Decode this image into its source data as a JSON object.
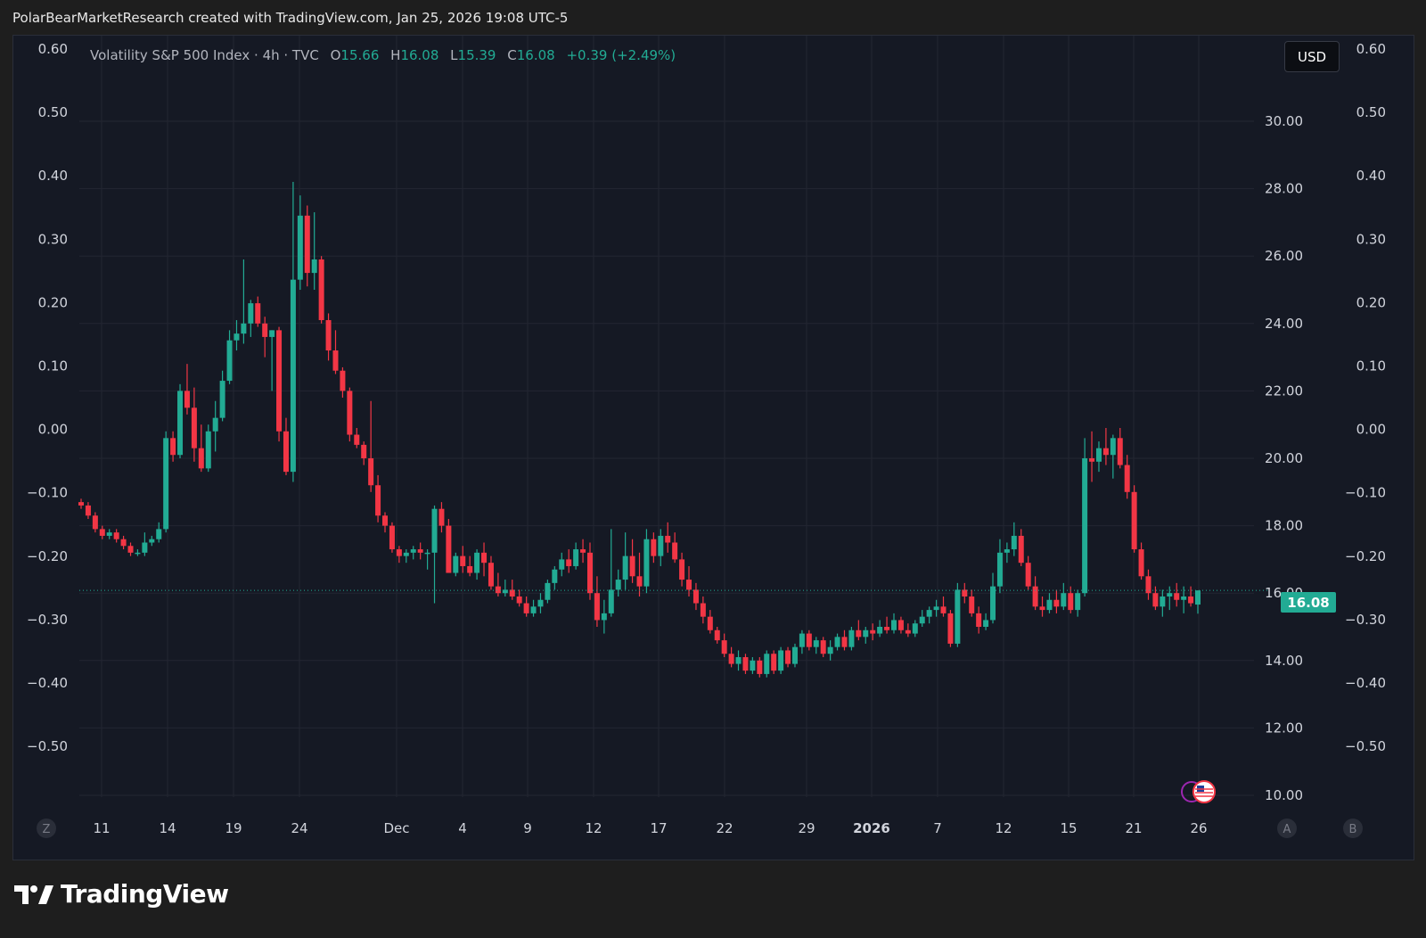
{
  "attribution": "PolarBearMarketResearch created with TradingView.com, Jan 25, 2026 19:08 UTC-5",
  "legend": {
    "symbol": "Volatility S&P 500 Index · 4h · TVC",
    "open_label": "O",
    "open": "15.66",
    "high_label": "H",
    "high": "16.08",
    "low_label": "L",
    "low": "15.39",
    "close_label": "C",
    "close": "16.08",
    "change": "+0.39 (+2.49%)"
  },
  "toolbar": {
    "currency": "USD",
    "scale_left_btn": "Z",
    "auto_btn": "A",
    "log_btn": "B"
  },
  "last_price": "16.08",
  "brand": {
    "name": "TradingView"
  },
  "colors": {
    "up": "#22ab94",
    "down": "#f23645",
    "background": "#151924",
    "grid": "#232632",
    "text": "#d1d4dc"
  },
  "icons": [
    "tradingview-logo-icon",
    "us-flag-icon",
    "event-marker-icon"
  ],
  "chart_data": {
    "type": "candlestick",
    "title": "Volatility S&P 500 Index · 4h · TVC",
    "interval": "4h",
    "x_ticks": [
      "11",
      "14",
      "19",
      "24",
      "Dec",
      "4",
      "9",
      "12",
      "17",
      "22",
      "29",
      "2026",
      "7",
      "12",
      "15",
      "21",
      "26"
    ],
    "y_right_ticks": [
      "30.00",
      "28.00",
      "26.00",
      "24.00",
      "22.00",
      "20.00",
      "18.00",
      "16.00",
      "14.00",
      "12.00",
      "10.00"
    ],
    "y_left_ticks": [
      "0.60",
      "0.50",
      "0.40",
      "0.30",
      "0.20",
      "0.10",
      "0.00",
      "−0.10",
      "−0.20",
      "−0.30",
      "−0.40",
      "−0.50"
    ],
    "y_far_right_ticks": [
      "0.60",
      "0.50",
      "0.40",
      "0.30",
      "0.20",
      "0.10",
      "0.00",
      "−0.10",
      "−0.20",
      "−0.30",
      "−0.40",
      "−0.50"
    ],
    "ylim": [
      10.0,
      31.0
    ],
    "last_value": 16.08,
    "grid": true,
    "candles_ohlc": [
      [
        18.7,
        18.8,
        18.5,
        18.6
      ],
      [
        18.6,
        18.7,
        18.2,
        18.3
      ],
      [
        18.3,
        18.4,
        17.8,
        17.9
      ],
      [
        17.9,
        18.0,
        17.6,
        17.7
      ],
      [
        17.7,
        17.9,
        17.6,
        17.8
      ],
      [
        17.8,
        17.9,
        17.5,
        17.6
      ],
      [
        17.6,
        17.7,
        17.3,
        17.4
      ],
      [
        17.4,
        17.5,
        17.1,
        17.2
      ],
      [
        17.2,
        17.3,
        17.1,
        17.2
      ],
      [
        17.2,
        17.8,
        17.1,
        17.5
      ],
      [
        17.5,
        17.7,
        17.4,
        17.6
      ],
      [
        17.6,
        18.1,
        17.5,
        17.9
      ],
      [
        17.9,
        20.8,
        17.8,
        20.6
      ],
      [
        20.6,
        20.8,
        19.9,
        20.1
      ],
      [
        20.1,
        22.2,
        20.0,
        22.0
      ],
      [
        22.0,
        22.8,
        21.3,
        21.5
      ],
      [
        21.5,
        22.1,
        19.9,
        20.3
      ],
      [
        20.3,
        21.0,
        19.6,
        19.7
      ],
      [
        19.7,
        21.0,
        19.6,
        20.8
      ],
      [
        20.8,
        21.7,
        20.2,
        21.2
      ],
      [
        21.2,
        22.6,
        21.1,
        22.3
      ],
      [
        22.3,
        23.8,
        22.2,
        23.5
      ],
      [
        23.5,
        24.1,
        23.2,
        23.7
      ],
      [
        23.7,
        25.9,
        23.4,
        24.0
      ],
      [
        24.0,
        24.7,
        23.6,
        24.6
      ],
      [
        24.6,
        24.8,
        23.9,
        24.0
      ],
      [
        24.0,
        24.2,
        23.0,
        23.6
      ],
      [
        23.6,
        23.8,
        22.0,
        23.8
      ],
      [
        23.8,
        23.9,
        20.5,
        20.8
      ],
      [
        20.8,
        21.2,
        19.5,
        19.6
      ],
      [
        19.6,
        28.2,
        19.3,
        25.3
      ],
      [
        25.3,
        27.8,
        25.0,
        27.2
      ],
      [
        27.2,
        27.5,
        25.1,
        25.5
      ],
      [
        25.5,
        27.3,
        25.0,
        25.9
      ],
      [
        25.9,
        26.0,
        24.0,
        24.1
      ],
      [
        24.1,
        24.3,
        22.9,
        23.2
      ],
      [
        23.2,
        23.8,
        22.5,
        22.6
      ],
      [
        22.6,
        22.7,
        21.8,
        22.0
      ],
      [
        22.0,
        22.1,
        20.5,
        20.7
      ],
      [
        20.7,
        20.9,
        20.3,
        20.4
      ],
      [
        20.4,
        20.5,
        19.8,
        20.0
      ],
      [
        20.0,
        21.7,
        19.0,
        19.2
      ],
      [
        19.2,
        19.5,
        18.1,
        18.3
      ],
      [
        18.3,
        18.4,
        17.8,
        18.0
      ],
      [
        18.0,
        18.1,
        17.2,
        17.3
      ],
      [
        17.3,
        17.4,
        16.9,
        17.1
      ],
      [
        17.1,
        17.3,
        16.9,
        17.2
      ],
      [
        17.2,
        17.4,
        17.0,
        17.3
      ],
      [
        17.3,
        17.5,
        17.0,
        17.2
      ],
      [
        17.2,
        17.3,
        16.7,
        17.2
      ],
      [
        17.2,
        18.6,
        15.7,
        18.5
      ],
      [
        18.5,
        18.7,
        17.8,
        18.0
      ],
      [
        18.0,
        18.2,
        16.6,
        16.6
      ],
      [
        16.6,
        17.2,
        16.5,
        17.1
      ],
      [
        17.1,
        17.4,
        16.6,
        16.8
      ],
      [
        16.8,
        17.1,
        16.5,
        16.6
      ],
      [
        16.6,
        17.3,
        16.4,
        17.2
      ],
      [
        17.2,
        17.5,
        16.5,
        16.9
      ],
      [
        16.9,
        17.1,
        16.1,
        16.2
      ],
      [
        16.2,
        16.6,
        15.9,
        16.0
      ],
      [
        16.0,
        16.4,
        15.9,
        16.1
      ],
      [
        16.1,
        16.4,
        15.8,
        15.9
      ],
      [
        15.9,
        16.1,
        15.6,
        15.7
      ],
      [
        15.7,
        15.9,
        15.3,
        15.4
      ],
      [
        15.4,
        15.8,
        15.3,
        15.6
      ],
      [
        15.6,
        16.0,
        15.4,
        15.8
      ],
      [
        15.8,
        16.4,
        15.7,
        16.3
      ],
      [
        16.3,
        16.8,
        16.1,
        16.7
      ],
      [
        16.7,
        17.2,
        16.5,
        17.0
      ],
      [
        17.0,
        17.3,
        16.6,
        16.8
      ],
      [
        16.8,
        17.5,
        16.7,
        17.3
      ],
      [
        17.3,
        17.6,
        16.9,
        17.2
      ],
      [
        17.2,
        17.5,
        15.8,
        16.0
      ],
      [
        16.0,
        16.5,
        15.0,
        15.2
      ],
      [
        15.2,
        15.8,
        14.8,
        15.4
      ],
      [
        15.4,
        17.9,
        15.3,
        16.1
      ],
      [
        16.1,
        16.7,
        15.9,
        16.4
      ],
      [
        16.4,
        17.8,
        16.1,
        17.1
      ],
      [
        17.1,
        17.6,
        16.3,
        16.5
      ],
      [
        16.5,
        17.2,
        15.9,
        16.2
      ],
      [
        16.2,
        17.9,
        16.0,
        17.6
      ],
      [
        17.6,
        17.8,
        16.9,
        17.1
      ],
      [
        17.1,
        17.9,
        16.8,
        17.7
      ],
      [
        17.7,
        18.1,
        17.2,
        17.5
      ],
      [
        17.5,
        17.8,
        16.9,
        17.0
      ],
      [
        17.0,
        17.2,
        16.2,
        16.4
      ],
      [
        16.4,
        16.8,
        15.9,
        16.1
      ],
      [
        16.1,
        16.3,
        15.5,
        15.7
      ],
      [
        15.7,
        15.9,
        15.1,
        15.3
      ],
      [
        15.3,
        15.5,
        14.8,
        14.9
      ],
      [
        14.9,
        15.0,
        14.5,
        14.6
      ],
      [
        14.6,
        14.8,
        14.1,
        14.2
      ],
      [
        14.2,
        14.4,
        13.8,
        13.9
      ],
      [
        13.9,
        14.3,
        13.7,
        14.1
      ],
      [
        14.1,
        14.2,
        13.6,
        13.7
      ],
      [
        13.7,
        14.1,
        13.6,
        14.0
      ],
      [
        14.0,
        14.1,
        13.5,
        13.6
      ],
      [
        13.6,
        14.3,
        13.5,
        14.2
      ],
      [
        14.2,
        14.3,
        13.6,
        13.7
      ],
      [
        13.7,
        14.4,
        13.6,
        14.3
      ],
      [
        14.3,
        14.4,
        13.8,
        13.9
      ],
      [
        13.9,
        14.5,
        13.8,
        14.4
      ],
      [
        14.4,
        14.9,
        14.2,
        14.8
      ],
      [
        14.8,
        14.9,
        14.3,
        14.4
      ],
      [
        14.4,
        14.7,
        14.2,
        14.6
      ],
      [
        14.6,
        14.7,
        14.1,
        14.2
      ],
      [
        14.2,
        14.6,
        14.0,
        14.4
      ],
      [
        14.4,
        14.8,
        14.3,
        14.7
      ],
      [
        14.7,
        14.9,
        14.3,
        14.4
      ],
      [
        14.4,
        15.0,
        14.3,
        14.9
      ],
      [
        14.9,
        15.2,
        14.6,
        14.7
      ],
      [
        14.7,
        15.0,
        14.5,
        14.9
      ],
      [
        14.9,
        15.1,
        14.6,
        14.8
      ],
      [
        14.8,
        15.2,
        14.7,
        15.0
      ],
      [
        15.0,
        15.3,
        14.8,
        14.9
      ],
      [
        14.9,
        15.4,
        14.8,
        15.2
      ],
      [
        15.2,
        15.3,
        14.8,
        14.9
      ],
      [
        14.9,
        15.1,
        14.7,
        14.8
      ],
      [
        14.8,
        15.2,
        14.7,
        15.1
      ],
      [
        15.1,
        15.5,
        15.0,
        15.3
      ],
      [
        15.3,
        15.6,
        15.1,
        15.5
      ],
      [
        15.5,
        15.8,
        15.3,
        15.6
      ],
      [
        15.6,
        15.9,
        15.3,
        15.4
      ],
      [
        15.4,
        15.5,
        14.4,
        14.5
      ],
      [
        14.5,
        16.3,
        14.4,
        16.1
      ],
      [
        16.1,
        16.3,
        15.7,
        15.9
      ],
      [
        15.9,
        16.1,
        15.3,
        15.4
      ],
      [
        15.4,
        15.6,
        14.8,
        15.0
      ],
      [
        15.0,
        15.4,
        14.9,
        15.2
      ],
      [
        15.2,
        16.6,
        15.1,
        16.2
      ],
      [
        16.2,
        17.6,
        16.0,
        17.2
      ],
      [
        17.2,
        17.5,
        16.9,
        17.3
      ],
      [
        17.3,
        18.1,
        17.1,
        17.7
      ],
      [
        17.7,
        17.9,
        16.8,
        16.9
      ],
      [
        16.9,
        17.1,
        16.1,
        16.2
      ],
      [
        16.2,
        16.5,
        15.5,
        15.6
      ],
      [
        15.6,
        15.9,
        15.3,
        15.5
      ],
      [
        15.5,
        16.0,
        15.4,
        15.8
      ],
      [
        15.8,
        16.1,
        15.4,
        15.6
      ],
      [
        15.6,
        16.3,
        15.5,
        16.0
      ],
      [
        16.0,
        16.2,
        15.4,
        15.5
      ],
      [
        15.5,
        16.1,
        15.3,
        16.0
      ],
      [
        16.0,
        20.6,
        15.9,
        20.0
      ],
      [
        20.0,
        20.8,
        19.3,
        19.9
      ],
      [
        19.9,
        20.5,
        19.6,
        20.3
      ],
      [
        20.3,
        20.9,
        19.8,
        20.1
      ],
      [
        20.1,
        20.7,
        19.4,
        20.6
      ],
      [
        20.6,
        20.9,
        19.7,
        19.8
      ],
      [
        19.8,
        20.1,
        18.8,
        19.0
      ],
      [
        19.0,
        19.2,
        17.2,
        17.3
      ],
      [
        17.3,
        17.5,
        16.4,
        16.5
      ],
      [
        16.5,
        16.7,
        15.8,
        16.0
      ],
      [
        16.0,
        16.2,
        15.5,
        15.6
      ],
      [
        15.6,
        16.1,
        15.3,
        15.9
      ],
      [
        15.9,
        16.2,
        15.5,
        16.0
      ],
      [
        16.0,
        16.3,
        15.6,
        15.8
      ],
      [
        15.8,
        16.2,
        15.4,
        15.9
      ],
      [
        15.9,
        16.2,
        15.6,
        15.7
      ],
      [
        15.66,
        16.08,
        15.39,
        16.08
      ]
    ]
  }
}
